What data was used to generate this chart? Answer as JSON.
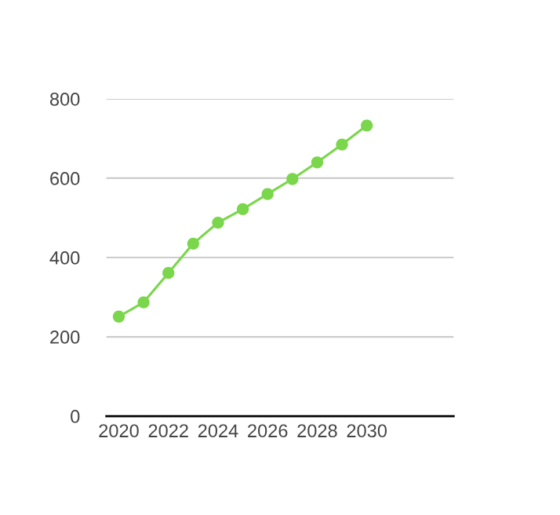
{
  "chart_data": {
    "type": "line",
    "x": [
      2020,
      2021,
      2022,
      2023,
      2024,
      2025,
      2026,
      2027,
      2028,
      2029,
      2030
    ],
    "series": [
      {
        "color": "#7ad64a",
        "values": [
          251,
          287,
          361,
          435,
          488,
          522,
          560,
          598,
          640,
          685,
          733
        ]
      }
    ],
    "xlim": [
      2019.5,
      2033.5
    ],
    "xticks": [
      2020,
      2022,
      2024,
      2026,
      2028,
      2030
    ],
    "ylim": [
      0,
      800
    ],
    "yticks": [
      0,
      200,
      400,
      600,
      800
    ],
    "grid": "y",
    "marker": "circle",
    "line_style": "solid"
  }
}
